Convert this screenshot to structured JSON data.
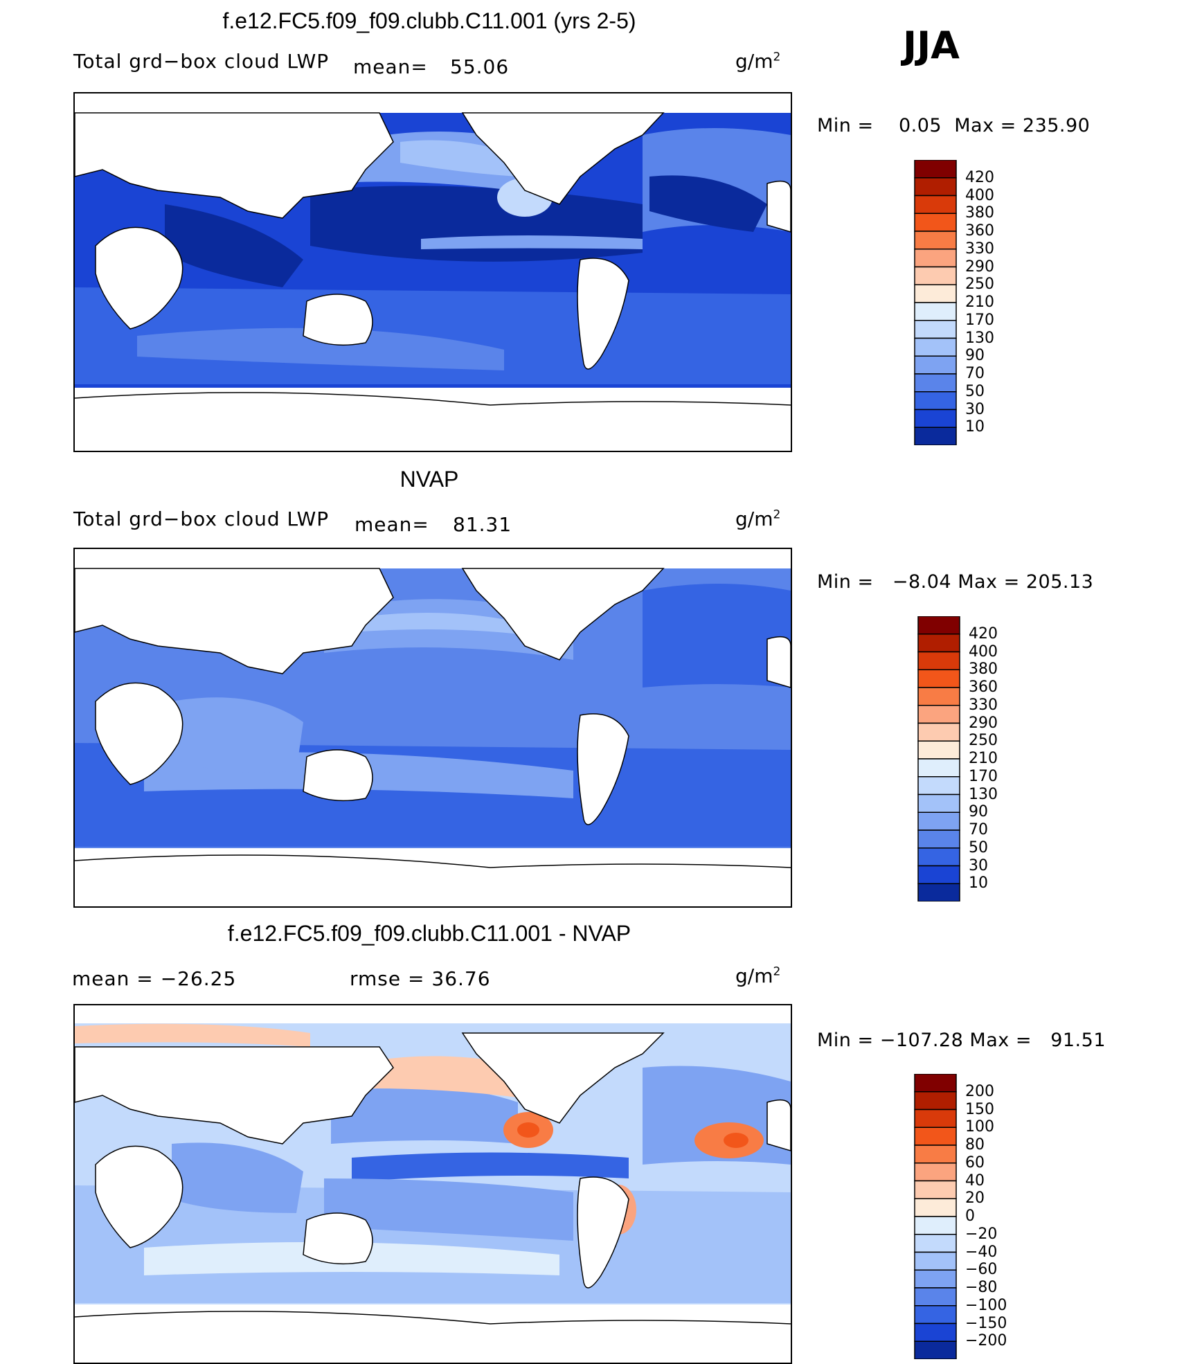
{
  "season_label": "JJA",
  "units": "g/m",
  "units_exp": "2",
  "colors": {
    "land": "#ffffff",
    "coast": "#000000"
  },
  "panels": [
    {
      "title": "f.e12.FC5.f09_f09.clubb.C11.001 (yrs 2-5)",
      "left_label": "Total grd−box cloud LWP",
      "mean_label": "mean=",
      "mean_value": "55.06",
      "min_label": "Min =",
      "min_value": "0.05",
      "max_label": "Max =",
      "max_value": "235.90",
      "colorbar_levels": [
        "420",
        "400",
        "380",
        "360",
        "330",
        "290",
        "250",
        "210",
        "170",
        "130",
        "90",
        "70",
        "50",
        "30",
        "10"
      ],
      "colorbar_colors": [
        "#800000",
        "#b01e00",
        "#d93a0a",
        "#f2561a",
        "#f87c45",
        "#fba47f",
        "#fdcbb0",
        "#fdebd9",
        "#dfeefc",
        "#c3dafc",
        "#a3c2f9",
        "#7ea3f2",
        "#5a84ea",
        "#3564e3",
        "#1a44d4",
        "#0a2a9c"
      ]
    },
    {
      "title": "NVAP",
      "left_label": "Total grd−box cloud LWP",
      "mean_label": "mean=",
      "mean_value": "81.31",
      "min_label": "Min =",
      "min_value": "−8.04",
      "max_label": "Max =",
      "max_value": "205.13",
      "colorbar_levels": [
        "420",
        "400",
        "380",
        "360",
        "330",
        "290",
        "250",
        "210",
        "170",
        "130",
        "90",
        "70",
        "50",
        "30",
        "10"
      ],
      "colorbar_colors": [
        "#800000",
        "#b01e00",
        "#d93a0a",
        "#f2561a",
        "#f87c45",
        "#fba47f",
        "#fdcbb0",
        "#fdebd9",
        "#dfeefc",
        "#c3dafc",
        "#a3c2f9",
        "#7ea3f2",
        "#5a84ea",
        "#3564e3",
        "#1a44d4",
        "#0a2a9c"
      ]
    },
    {
      "title": "f.e12.FC5.f09_f09.clubb.C11.001 - NVAP",
      "mean_label": "mean =",
      "mean_value": "−26.25",
      "rmse_label": "rmse =",
      "rmse_value": "36.76",
      "min_label": "Min =",
      "min_value": "−107.28",
      "max_label": "Max =",
      "max_value": "91.51",
      "colorbar_levels": [
        "200",
        "150",
        "100",
        "80",
        "60",
        "40",
        "20",
        "0",
        "−20",
        "−40",
        "−60",
        "−80",
        "−100",
        "−150",
        "−200"
      ],
      "colorbar_colors": [
        "#800000",
        "#b01e00",
        "#d93a0a",
        "#f2561a",
        "#f87c45",
        "#fba47f",
        "#fdcbb0",
        "#fdebd9",
        "#dfeefc",
        "#c3dafc",
        "#a3c2f9",
        "#7ea3f2",
        "#5a84ea",
        "#3564e3",
        "#1a44d4",
        "#0a2a9c"
      ]
    }
  ],
  "chart_data": [
    {
      "type": "heatmap",
      "title": "f.e12.FC5.f09_f09.clubb.C11.001 (yrs 2-5)",
      "field": "Total grd−box cloud LWP",
      "units": "g/m2",
      "mean": 55.06,
      "min": 0.05,
      "max": 235.9,
      "levels": [
        10,
        30,
        50,
        70,
        90,
        130,
        170,
        210,
        250,
        290,
        330,
        360,
        380,
        400,
        420
      ],
      "region_values": {
        "southern_ocean": 45,
        "tropical_pacific": 15,
        "north_pacific": 110,
        "ne_pacific_high": 150,
        "itcz": 90,
        "north_atlantic": 70,
        "indian_ocean": 25,
        "atlantic_tropics": 25
      }
    },
    {
      "type": "heatmap",
      "title": "NVAP",
      "field": "Total grd−box cloud LWP",
      "units": "g/m2",
      "mean": 81.31,
      "min": -8.04,
      "max": 205.13,
      "levels": [
        10,
        30,
        50,
        70,
        90,
        130,
        170,
        210,
        250,
        290,
        330,
        360,
        380,
        400,
        420
      ],
      "region_values": {
        "southern_ocean": 70,
        "tropical_pacific": 60,
        "north_pacific": 120,
        "ne_pacific_high": 110,
        "itcz": 130,
        "north_atlantic": 60,
        "indian_ocean": 80,
        "atlantic_tropics": 60
      }
    },
    {
      "type": "heatmap",
      "title": "f.e12.FC5.f09_f09.clubb.C11.001 - NVAP",
      "units": "g/m2",
      "mean": -26.25,
      "rmse": 36.76,
      "min": -107.28,
      "max": 91.51,
      "levels": [
        -200,
        -150,
        -100,
        -80,
        -60,
        -40,
        -20,
        0,
        20,
        40,
        60,
        80,
        100,
        150,
        200
      ],
      "region_values": {
        "southern_ocean": -20,
        "tropical_pacific": -60,
        "north_pacific": -10,
        "ne_pacific_high": 70,
        "itcz": -90,
        "north_atlantic": 10,
        "atlantic_high": 80,
        "indian_ocean": -50,
        "se_pacific": 40
      }
    }
  ]
}
